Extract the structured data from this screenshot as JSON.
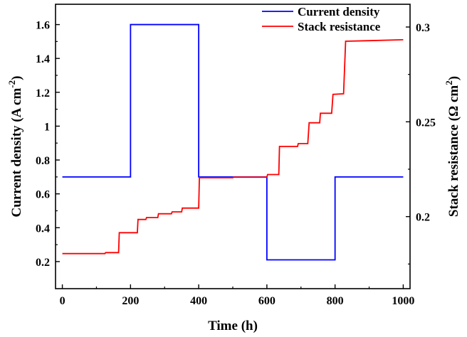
{
  "chart_data": {
    "type": "line",
    "xlabel": "Time (h)",
    "ylabel_left": {
      "main": "Current density  (A cm",
      "sup": "-2",
      "close": ")"
    },
    "ylabel_right": {
      "main": "Stack resistance  (Ω cm",
      "sup": "2",
      "close": ")"
    },
    "xlim": [
      -20,
      1020
    ],
    "ylim_left": [
      0.04,
      1.72
    ],
    "ylim_right": [
      0.162,
      0.312
    ],
    "x_ticks": [
      0,
      200,
      400,
      600,
      800,
      1000
    ],
    "x_tick_labels": [
      "0",
      "200",
      "400",
      "600",
      "800",
      "1000"
    ],
    "y_left_ticks": [
      0.2,
      0.4,
      0.6,
      0.8,
      1.0,
      1.2,
      1.4,
      1.6
    ],
    "y_left_tick_labels": [
      "0.2",
      "0.4",
      "0.6",
      "0.8",
      "1",
      "1.2",
      "1.4",
      "1.6"
    ],
    "y_right_ticks": [
      0.2,
      0.25,
      0.3
    ],
    "y_right_tick_labels": [
      "0.2",
      "0.25",
      "0.3"
    ],
    "legend_position": "top-right",
    "series": [
      {
        "name": "Current density",
        "axis": "left",
        "color": "#0000ff",
        "x": [
          0,
          200,
          200,
          400,
          400,
          600,
          600,
          800,
          800,
          1000
        ],
        "y": [
          0.7,
          0.7,
          1.6,
          1.6,
          0.7,
          0.7,
          0.21,
          0.21,
          0.7,
          0.7
        ]
      },
      {
        "name": "Stack resistance",
        "axis": "right",
        "color": "#ff0000",
        "x": [
          0,
          125,
          127,
          165,
          167,
          220,
          222,
          245,
          247,
          280,
          282,
          320,
          322,
          350,
          352,
          400,
          402,
          500,
          502,
          600,
          602,
          635,
          637,
          690,
          692,
          720,
          724,
          755,
          757,
          790,
          794,
          825,
          831,
          900,
          1000
        ],
        "y": [
          0.1805,
          0.1805,
          0.181,
          0.181,
          0.1915,
          0.1915,
          0.1985,
          0.1985,
          0.1995,
          0.1995,
          0.2015,
          0.2015,
          0.2025,
          0.2025,
          0.2045,
          0.2045,
          0.2205,
          0.2205,
          0.2208,
          0.2208,
          0.2222,
          0.2222,
          0.237,
          0.237,
          0.2385,
          0.2385,
          0.2495,
          0.2495,
          0.2545,
          0.2545,
          0.2645,
          0.2648,
          0.2925,
          0.2928,
          0.2933
        ]
      }
    ]
  }
}
